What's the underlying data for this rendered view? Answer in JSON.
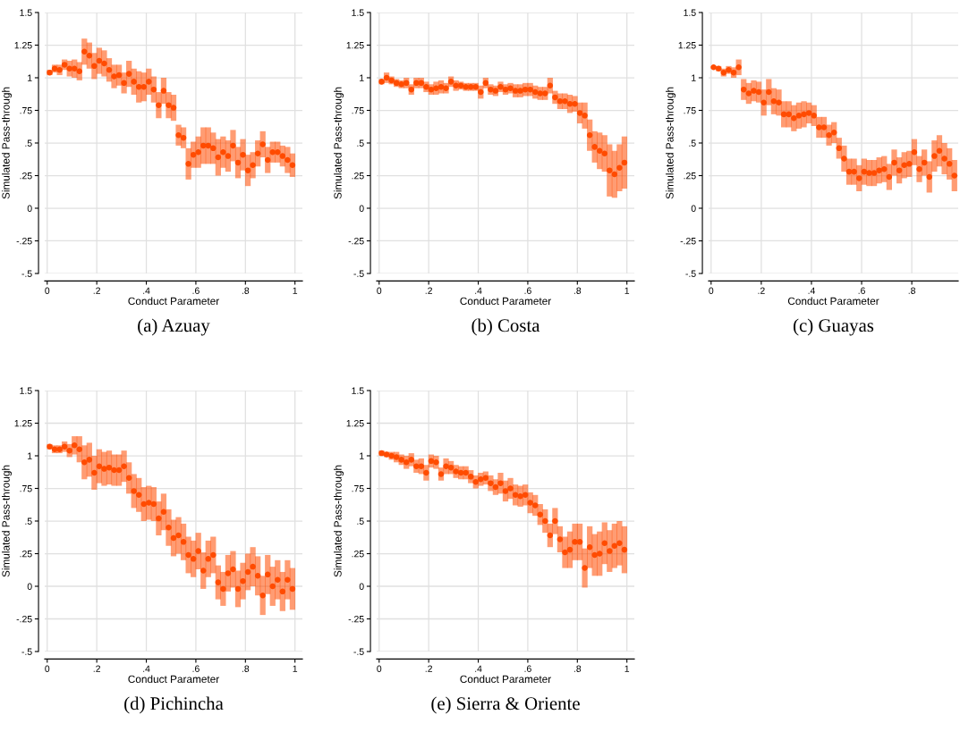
{
  "chart_data": [
    {
      "type": "scatter",
      "title": "(a) Azuay",
      "xlabel": "Conduct Parameter",
      "ylabel": "Simulated Pass-through",
      "xlim": [
        -0.01,
        1.03
      ],
      "xticks": [
        0,
        {
          "value": 0.2,
          "label": ".2"
        },
        {
          "value": 0.4,
          "label": ".4"
        },
        {
          "value": 0.6,
          "label": ".6"
        },
        {
          "value": 0.8,
          "label": ".8"
        },
        1
      ],
      "ylim": [
        -0.5,
        1.5
      ],
      "yticks": [
        {
          "value": -0.5,
          "label": "-.5"
        },
        {
          "value": -0.25,
          "label": "-.25"
        },
        0,
        {
          "value": 0.25,
          "label": ".25"
        },
        {
          "value": 0.5,
          "label": ".5"
        },
        {
          "value": 0.75,
          "label": ".75"
        },
        1,
        {
          "value": 1.25,
          "label": "1.25"
        },
        {
          "value": 1.5,
          "label": "1.5"
        }
      ],
      "grid": true,
      "marker": "circle",
      "color": "#ff4b00",
      "x": [
        0.01,
        0.03,
        0.05,
        0.07,
        0.09,
        0.11,
        0.13,
        0.15,
        0.17,
        0.19,
        0.21,
        0.23,
        0.25,
        0.27,
        0.29,
        0.31,
        0.33,
        0.35,
        0.37,
        0.39,
        0.41,
        0.43,
        0.45,
        0.47,
        0.49,
        0.51,
        0.53,
        0.55,
        0.57,
        0.59,
        0.61,
        0.63,
        0.65,
        0.67,
        0.69,
        0.71,
        0.73,
        0.75,
        0.77,
        0.79,
        0.81,
        0.83,
        0.85,
        0.87,
        0.89,
        0.91,
        0.93,
        0.95,
        0.97,
        0.99
      ],
      "values": [
        1.04,
        1.07,
        1.06,
        1.1,
        1.07,
        1.07,
        1.05,
        1.2,
        1.17,
        1.09,
        1.13,
        1.11,
        1.06,
        1.01,
        1.02,
        0.96,
        1.03,
        0.97,
        0.93,
        0.93,
        0.97,
        0.91,
        0.79,
        0.9,
        0.79,
        0.77,
        0.56,
        0.54,
        0.34,
        0.41,
        0.43,
        0.48,
        0.48,
        0.46,
        0.39,
        0.43,
        0.4,
        0.48,
        0.35,
        0.41,
        0.29,
        0.33,
        0.42,
        0.49,
        0.37,
        0.43,
        0.43,
        0.4,
        0.37,
        0.33
      ],
      "errors": [
        0.02,
        0.03,
        0.04,
        0.04,
        0.06,
        0.07,
        0.07,
        0.1,
        0.1,
        0.1,
        0.1,
        0.1,
        0.09,
        0.09,
        0.08,
        0.08,
        0.1,
        0.1,
        0.12,
        0.11,
        0.1,
        0.1,
        0.1,
        0.1,
        0.1,
        0.1,
        0.08,
        0.08,
        0.12,
        0.1,
        0.12,
        0.14,
        0.14,
        0.12,
        0.14,
        0.12,
        0.12,
        0.12,
        0.12,
        0.12,
        0.12,
        0.1,
        0.1,
        0.1,
        0.1,
        0.08,
        0.08,
        0.08,
        0.1,
        0.09
      ]
    },
    {
      "type": "scatter",
      "title": "(b) Costa",
      "xlabel": "Conduct Parameter",
      "ylabel": "Simulated Pass-through",
      "xlim": [
        -0.01,
        1.03
      ],
      "xticks": [
        0,
        {
          "value": 0.2,
          "label": ".2"
        },
        {
          "value": 0.4,
          "label": ".4"
        },
        {
          "value": 0.6,
          "label": ".6"
        },
        {
          "value": 0.8,
          "label": ".8"
        },
        1
      ],
      "ylim": [
        -0.5,
        1.5
      ],
      "yticks": [
        {
          "value": -0.5,
          "label": "-.5"
        },
        {
          "value": -0.25,
          "label": "-.25"
        },
        0,
        {
          "value": 0.25,
          "label": ".25"
        },
        {
          "value": 0.5,
          "label": ".5"
        },
        {
          "value": 0.75,
          "label": ".75"
        },
        1,
        {
          "value": 1.25,
          "label": "1.25"
        },
        {
          "value": 1.5,
          "label": "1.5"
        }
      ],
      "grid": true,
      "marker": "circle",
      "color": "#ff4b00",
      "x": [
        0.01,
        0.03,
        0.05,
        0.07,
        0.09,
        0.11,
        0.13,
        0.15,
        0.17,
        0.19,
        0.21,
        0.23,
        0.25,
        0.27,
        0.29,
        0.31,
        0.33,
        0.35,
        0.37,
        0.39,
        0.41,
        0.43,
        0.45,
        0.47,
        0.49,
        0.51,
        0.53,
        0.55,
        0.57,
        0.59,
        0.61,
        0.63,
        0.65,
        0.67,
        0.69,
        0.71,
        0.73,
        0.75,
        0.77,
        0.79,
        0.81,
        0.83,
        0.85,
        0.87,
        0.89,
        0.91,
        0.93,
        0.95,
        0.97,
        0.99
      ],
      "values": [
        0.97,
        1.0,
        0.98,
        0.96,
        0.95,
        0.96,
        0.91,
        0.96,
        0.96,
        0.93,
        0.91,
        0.92,
        0.93,
        0.92,
        0.97,
        0.94,
        0.94,
        0.93,
        0.93,
        0.93,
        0.89,
        0.96,
        0.91,
        0.9,
        0.93,
        0.91,
        0.92,
        0.9,
        0.9,
        0.91,
        0.91,
        0.89,
        0.88,
        0.88,
        0.94,
        0.85,
        0.82,
        0.82,
        0.8,
        0.8,
        0.73,
        0.71,
        0.56,
        0.47,
        0.44,
        0.42,
        0.29,
        0.26,
        0.31,
        0.35
      ],
      "errors": [
        0.02,
        0.04,
        0.03,
        0.03,
        0.03,
        0.04,
        0.04,
        0.04,
        0.04,
        0.04,
        0.04,
        0.05,
        0.05,
        0.04,
        0.04,
        0.04,
        0.03,
        0.03,
        0.03,
        0.03,
        0.05,
        0.04,
        0.04,
        0.04,
        0.04,
        0.04,
        0.04,
        0.05,
        0.05,
        0.05,
        0.05,
        0.05,
        0.05,
        0.05,
        0.06,
        0.05,
        0.06,
        0.06,
        0.07,
        0.06,
        0.08,
        0.1,
        0.12,
        0.12,
        0.14,
        0.14,
        0.2,
        0.18,
        0.18,
        0.2
      ]
    },
    {
      "type": "scatter",
      "title": "(c) Guayas",
      "xlabel": "Conduct Parameter",
      "ylabel": "Simulated Pass-through",
      "xlim": [
        -0.01,
        0.985
      ],
      "xticks": [
        0,
        {
          "value": 0.2,
          "label": ".2"
        },
        {
          "value": 0.4,
          "label": ".4"
        },
        {
          "value": 0.6,
          "label": ".6"
        },
        {
          "value": 0.8,
          "label": ".8"
        }
      ],
      "ylim": [
        -0.5,
        1.5
      ],
      "yticks": [
        {
          "value": -0.5,
          "label": "-.5"
        },
        {
          "value": -0.25,
          "label": "-.25"
        },
        0,
        {
          "value": 0.25,
          "label": ".25"
        },
        {
          "value": 0.5,
          "label": ".5"
        },
        {
          "value": 0.75,
          "label": ".75"
        },
        1,
        {
          "value": 1.25,
          "label": "1.25"
        },
        {
          "value": 1.5,
          "label": "1.5"
        }
      ],
      "grid": true,
      "marker": "circle",
      "color": "#ff4b00",
      "x": [
        0.01,
        0.03,
        0.05,
        0.07,
        0.09,
        0.11,
        0.13,
        0.15,
        0.17,
        0.19,
        0.21,
        0.23,
        0.25,
        0.27,
        0.29,
        0.31,
        0.33,
        0.35,
        0.37,
        0.39,
        0.41,
        0.43,
        0.45,
        0.47,
        0.49,
        0.51,
        0.53,
        0.55,
        0.57,
        0.59,
        0.61,
        0.63,
        0.65,
        0.67,
        0.69,
        0.71,
        0.73,
        0.75,
        0.77,
        0.79,
        0.81,
        0.83,
        0.85,
        0.87,
        0.89,
        0.91,
        0.93,
        0.95,
        0.97
      ],
      "values": [
        1.08,
        1.07,
        1.04,
        1.06,
        1.04,
        1.08,
        0.91,
        0.88,
        0.9,
        0.89,
        0.81,
        0.89,
        0.82,
        0.81,
        0.72,
        0.72,
        0.69,
        0.71,
        0.72,
        0.73,
        0.71,
        0.62,
        0.62,
        0.56,
        0.58,
        0.46,
        0.38,
        0.28,
        0.28,
        0.23,
        0.28,
        0.27,
        0.27,
        0.29,
        0.3,
        0.24,
        0.35,
        0.29,
        0.33,
        0.34,
        0.43,
        0.3,
        0.35,
        0.24,
        0.4,
        0.44,
        0.38,
        0.34,
        0.25
      ],
      "errors": [
        0.01,
        0.02,
        0.03,
        0.03,
        0.04,
        0.06,
        0.08,
        0.08,
        0.08,
        0.08,
        0.1,
        0.1,
        0.1,
        0.1,
        0.1,
        0.1,
        0.1,
        0.1,
        0.1,
        0.08,
        0.08,
        0.08,
        0.08,
        0.08,
        0.08,
        0.08,
        0.1,
        0.1,
        0.1,
        0.1,
        0.1,
        0.1,
        0.1,
        0.1,
        0.1,
        0.1,
        0.1,
        0.1,
        0.1,
        0.1,
        0.1,
        0.1,
        0.1,
        0.12,
        0.12,
        0.12,
        0.12,
        0.12,
        0.12
      ]
    },
    {
      "type": "scatter",
      "title": "(d) Pichincha",
      "xlabel": "Conduct Parameter",
      "ylabel": "Simulated Pass-through",
      "xlim": [
        -0.01,
        1.03
      ],
      "xticks": [
        0,
        {
          "value": 0.2,
          "label": ".2"
        },
        {
          "value": 0.4,
          "label": ".4"
        },
        {
          "value": 0.6,
          "label": ".6"
        },
        {
          "value": 0.8,
          "label": ".8"
        },
        1
      ],
      "ylim": [
        -0.5,
        1.5
      ],
      "yticks": [
        {
          "value": -0.5,
          "label": "-.5"
        },
        {
          "value": -0.25,
          "label": "-.25"
        },
        0,
        {
          "value": 0.25,
          "label": ".25"
        },
        {
          "value": 0.5,
          "label": ".5"
        },
        {
          "value": 0.75,
          "label": ".75"
        },
        1,
        {
          "value": 1.25,
          "label": "1.25"
        },
        {
          "value": 1.5,
          "label": "1.5"
        }
      ],
      "grid": true,
      "marker": "circle",
      "color": "#ff4b00",
      "x": [
        0.01,
        0.03,
        0.05,
        0.07,
        0.09,
        0.11,
        0.13,
        0.15,
        0.17,
        0.19,
        0.21,
        0.23,
        0.25,
        0.27,
        0.29,
        0.31,
        0.33,
        0.35,
        0.37,
        0.39,
        0.41,
        0.43,
        0.45,
        0.47,
        0.49,
        0.51,
        0.53,
        0.55,
        0.57,
        0.59,
        0.61,
        0.63,
        0.65,
        0.67,
        0.69,
        0.71,
        0.73,
        0.75,
        0.77,
        0.79,
        0.81,
        0.83,
        0.85,
        0.87,
        0.89,
        0.91,
        0.93,
        0.95,
        0.97,
        0.99
      ],
      "values": [
        1.07,
        1.05,
        1.05,
        1.07,
        1.04,
        1.08,
        1.05,
        0.95,
        0.97,
        0.87,
        0.92,
        0.9,
        0.91,
        0.89,
        0.89,
        0.92,
        0.83,
        0.73,
        0.7,
        0.63,
        0.64,
        0.63,
        0.52,
        0.57,
        0.45,
        0.37,
        0.39,
        0.34,
        0.24,
        0.21,
        0.27,
        0.12,
        0.21,
        0.24,
        0.03,
        -0.02,
        0.1,
        0.13,
        -0.02,
        0.04,
        0.11,
        0.15,
        0.08,
        -0.07,
        0.09,
        0.0,
        0.05,
        -0.04,
        0.05,
        -0.02
      ],
      "errors": [
        0.02,
        0.03,
        0.03,
        0.04,
        0.05,
        0.07,
        0.1,
        0.13,
        0.13,
        0.13,
        0.13,
        0.13,
        0.13,
        0.12,
        0.12,
        0.12,
        0.12,
        0.13,
        0.13,
        0.13,
        0.13,
        0.13,
        0.13,
        0.14,
        0.14,
        0.14,
        0.14,
        0.14,
        0.14,
        0.14,
        0.14,
        0.14,
        0.14,
        0.14,
        0.13,
        0.13,
        0.14,
        0.14,
        0.14,
        0.14,
        0.14,
        0.15,
        0.15,
        0.15,
        0.15,
        0.15,
        0.15,
        0.15,
        0.15,
        0.16
      ]
    },
    {
      "type": "scatter",
      "title": "(e) Sierra & Oriente",
      "xlabel": "Conduct Parameter",
      "ylabel": "Simulated Pass-through",
      "xlim": [
        -0.01,
        1.03
      ],
      "xticks": [
        0,
        {
          "value": 0.2,
          "label": ".2"
        },
        {
          "value": 0.4,
          "label": ".4"
        },
        {
          "value": 0.6,
          "label": ".6"
        },
        {
          "value": 0.8,
          "label": ".8"
        },
        1
      ],
      "ylim": [
        -0.5,
        1.5
      ],
      "yticks": [
        {
          "value": -0.5,
          "label": "-.5"
        },
        {
          "value": -0.25,
          "label": "-.25"
        },
        0,
        {
          "value": 0.25,
          "label": ".25"
        },
        {
          "value": 0.5,
          "label": ".5"
        },
        {
          "value": 0.75,
          "label": ".75"
        },
        1,
        {
          "value": 1.25,
          "label": "1.25"
        },
        {
          "value": 1.5,
          "label": "1.5"
        }
      ],
      "grid": true,
      "marker": "circle",
      "color": "#ff4b00",
      "x": [
        0.01,
        0.03,
        0.05,
        0.07,
        0.09,
        0.11,
        0.13,
        0.15,
        0.17,
        0.19,
        0.21,
        0.23,
        0.25,
        0.27,
        0.29,
        0.31,
        0.33,
        0.35,
        0.37,
        0.39,
        0.41,
        0.43,
        0.45,
        0.47,
        0.49,
        0.51,
        0.53,
        0.55,
        0.57,
        0.59,
        0.61,
        0.63,
        0.65,
        0.67,
        0.69,
        0.71,
        0.73,
        0.75,
        0.77,
        0.79,
        0.81,
        0.83,
        0.85,
        0.87,
        0.89,
        0.91,
        0.93,
        0.95,
        0.97,
        0.99
      ],
      "values": [
        1.02,
        1.01,
        1.0,
        0.99,
        0.97,
        0.95,
        0.97,
        0.92,
        0.92,
        0.87,
        0.96,
        0.95,
        0.86,
        0.92,
        0.91,
        0.88,
        0.87,
        0.87,
        0.84,
        0.8,
        0.82,
        0.83,
        0.79,
        0.76,
        0.79,
        0.73,
        0.75,
        0.7,
        0.69,
        0.7,
        0.64,
        0.62,
        0.55,
        0.5,
        0.39,
        0.5,
        0.36,
        0.26,
        0.28,
        0.34,
        0.34,
        0.14,
        0.3,
        0.24,
        0.25,
        0.33,
        0.27,
        0.31,
        0.33,
        0.28
      ],
      "errors": [
        0.02,
        0.02,
        0.03,
        0.04,
        0.04,
        0.05,
        0.05,
        0.05,
        0.06,
        0.06,
        0.05,
        0.05,
        0.05,
        0.06,
        0.05,
        0.05,
        0.05,
        0.05,
        0.05,
        0.05,
        0.05,
        0.05,
        0.06,
        0.06,
        0.08,
        0.08,
        0.08,
        0.08,
        0.08,
        0.08,
        0.08,
        0.08,
        0.08,
        0.09,
        0.09,
        0.1,
        0.1,
        0.12,
        0.14,
        0.14,
        0.14,
        0.15,
        0.16,
        0.16,
        0.17,
        0.16,
        0.16,
        0.17,
        0.17,
        0.18
      ]
    }
  ]
}
